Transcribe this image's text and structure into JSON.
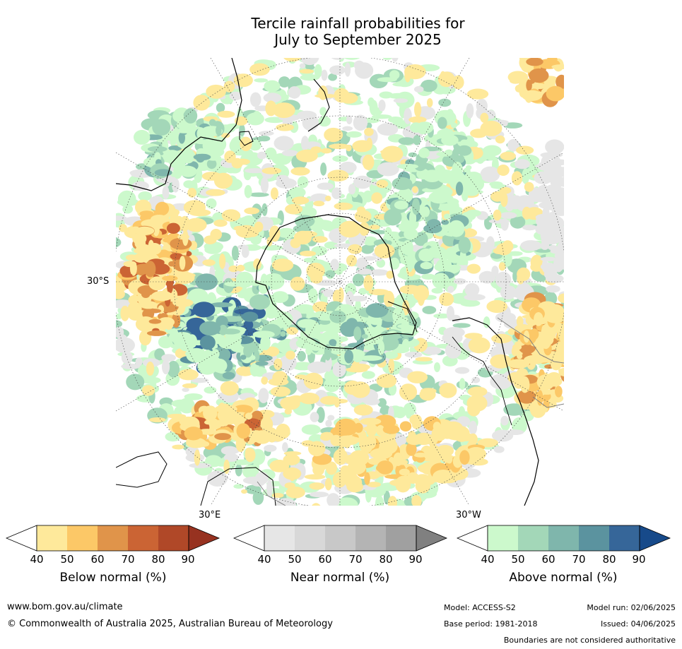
{
  "title_line1": "Tercile rainfall probabilities for",
  "title_line2": "July to September 2025",
  "map": {
    "lat_label": "30°S",
    "lon_label_east": "30°E",
    "lon_label_west": "30°W"
  },
  "colorbars": [
    {
      "name": "Below normal (%)",
      "ticks": [
        "40",
        "50",
        "60",
        "70",
        "80",
        "90"
      ],
      "colors": [
        "#ffffff",
        "#fee99b",
        "#fcc867",
        "#e0944a",
        "#cb6434",
        "#b04828",
        "#973220"
      ]
    },
    {
      "name": "Near normal (%)",
      "ticks": [
        "40",
        "50",
        "60",
        "70",
        "80",
        "90"
      ],
      "colors": [
        "#ffffff",
        "#e6e6e6",
        "#d8d8d8",
        "#c8c8c8",
        "#b4b4b4",
        "#a0a0a0",
        "#808080"
      ]
    },
    {
      "name": "Above normal (%)",
      "ticks": [
        "40",
        "50",
        "60",
        "70",
        "80",
        "90"
      ],
      "colors": [
        "#ffffff",
        "#ccf9cc",
        "#a3d7b8",
        "#7fb6ac",
        "#5b939f",
        "#366699",
        "#174a8a"
      ]
    }
  ],
  "footer": {
    "website": "www.bom.gov.au/climate",
    "copyright": "© Commonwealth of Australia 2025, Australian Bureau of Meteorology",
    "model": "Model: ACCESS-S2",
    "model_run": "Model run: 02/06/2025",
    "base_period": "Base period: 1981-2018",
    "issued": "Issued: 04/06/2025",
    "disclaimer": "Boundaries are not considered authoritative"
  }
}
